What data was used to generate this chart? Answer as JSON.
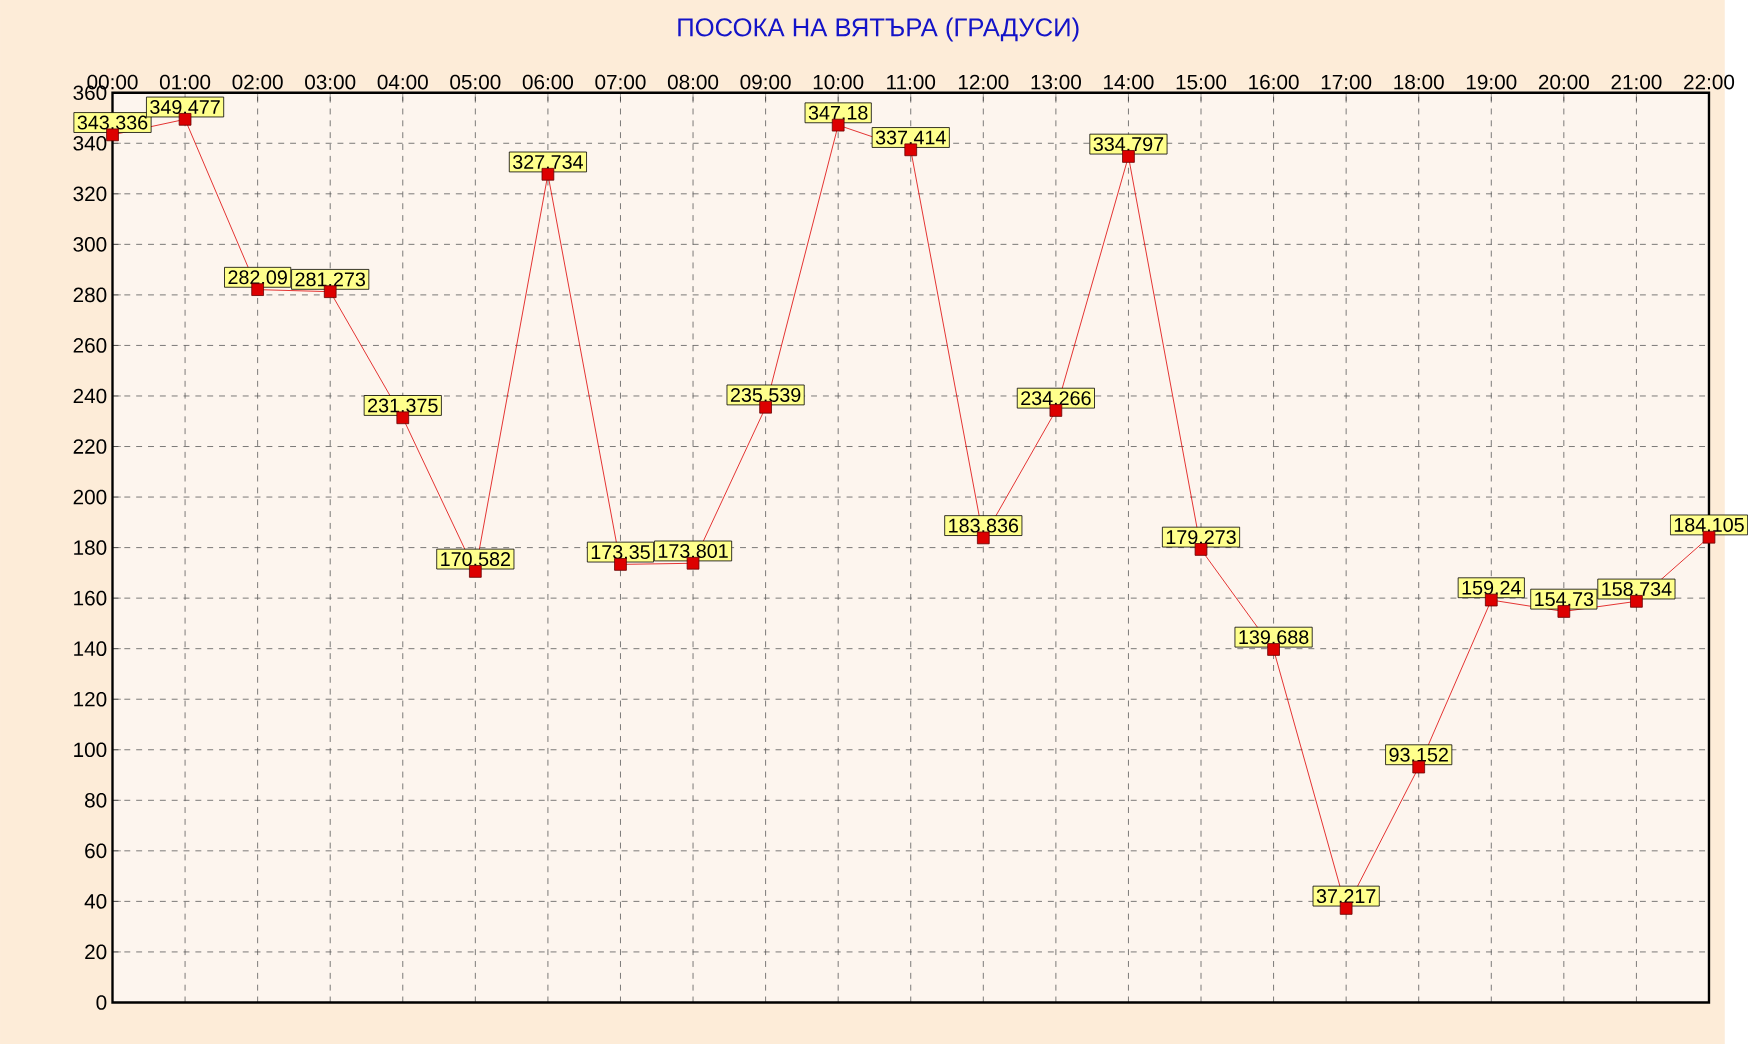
{
  "chart_data": {
    "type": "line",
    "title": "ПОСОКА НА ВЯТЪРА    (ГРАДУСИ)",
    "categories": [
      "00:00",
      "01:00",
      "02:00",
      "03:00",
      "04:00",
      "05:00",
      "06:00",
      "07:00",
      "08:00",
      "09:00",
      "10:00",
      "11:00",
      "12:00",
      "13:00",
      "14:00",
      "15:00",
      "16:00",
      "17:00",
      "18:00",
      "19:00",
      "20:00",
      "21:00",
      "22:00"
    ],
    "values": [
      343.336,
      349.477,
      282.09,
      281.273,
      231.375,
      170.582,
      327.734,
      173.35,
      173.801,
      235.539,
      347.18,
      337.414,
      183.836,
      234.266,
      334.797,
      179.273,
      139.688,
      37.217,
      93.152,
      159.24,
      154.73,
      158.734,
      184.105
    ],
    "color": "#dd0000",
    "ylim": [
      0,
      360
    ],
    "yticks": [
      0,
      20,
      40,
      60,
      80,
      100,
      120,
      140,
      160,
      180,
      200,
      220,
      240,
      260,
      280,
      300,
      320,
      340,
      360
    ],
    "grid": true,
    "marker": "square",
    "line_style": "solid",
    "data_labels": true
  }
}
